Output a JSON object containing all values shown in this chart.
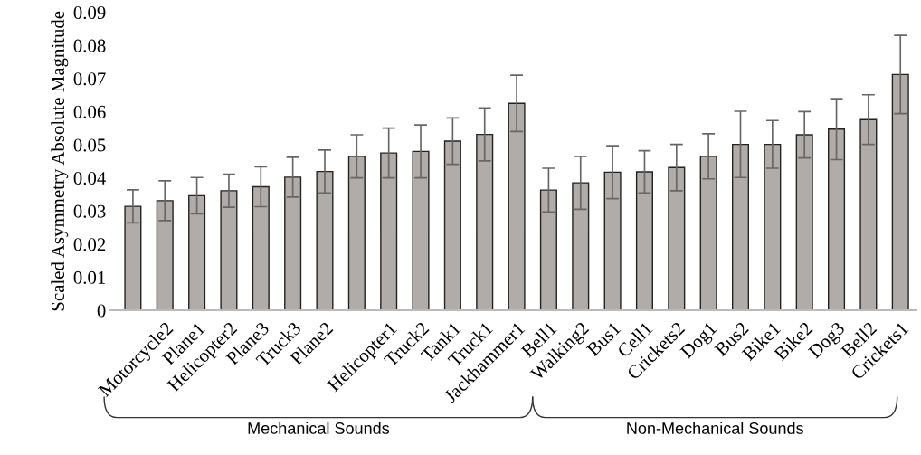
{
  "chart_data": {
    "type": "bar",
    "ylabel": "Scaled Asymmetry Absolute Magnitude",
    "categories": [
      null,
      "Motorcycle2",
      "Plane1",
      "Helicopter2",
      "Plane3",
      "Truck3",
      "Plane2",
      null,
      "Helicopter1",
      "Truck2",
      "Tank1",
      "Truck1",
      "Jackhammer1",
      "Bell1",
      "Walking2",
      "Bus1",
      "Cell1",
      "Crickets2",
      "Dog1",
      "Bus2",
      "Bike1",
      "Bike2",
      "Dog3",
      "Bell2",
      "Crickets1"
    ],
    "values": [
      0.0314,
      0.0331,
      0.0346,
      0.0361,
      0.0373,
      0.0402,
      0.0419,
      0.0465,
      0.0475,
      0.048,
      0.0511,
      0.0531,
      0.0625,
      0.0363,
      0.0385,
      0.0417,
      0.0418,
      0.0431,
      0.0465,
      0.0501,
      0.0501,
      0.053,
      0.0547,
      0.0576,
      0.0712
    ],
    "errors": [
      0.005,
      0.006,
      0.0055,
      0.005,
      0.006,
      0.006,
      0.0065,
      0.0065,
      0.0075,
      0.008,
      0.007,
      0.008,
      0.0085,
      0.0066,
      0.008,
      0.008,
      0.0064,
      0.007,
      0.0068,
      0.01,
      0.0072,
      0.007,
      0.0092,
      0.0075,
      0.0118
    ],
    "color": "#b0aca9",
    "ylim": [
      0,
      0.09
    ],
    "yticks": [
      0,
      0.01,
      0.02,
      0.03,
      0.04,
      0.05,
      0.06,
      0.07,
      0.08,
      0.09
    ],
    "grid": false,
    "annotations": [
      "Mechanical Sounds",
      "Non-Mechanical Sounds"
    ]
  }
}
